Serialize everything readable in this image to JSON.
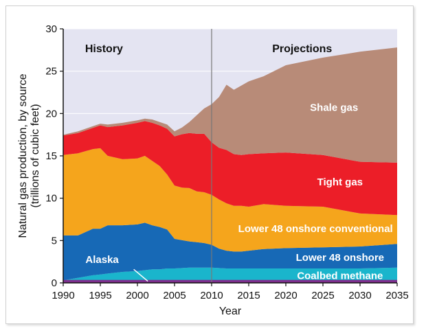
{
  "chart_data": {
    "type": "area",
    "stacked": true,
    "xlabel": "Year",
    "ylabel_line1": "Natural gas production, by source",
    "ylabel_line2": "(trillions of cubic feet)",
    "xlim": [
      1990,
      2035
    ],
    "ylim": [
      0,
      30
    ],
    "x_ticks": [
      1990,
      1995,
      2000,
      2005,
      2010,
      2015,
      2020,
      2025,
      2030,
      2035
    ],
    "y_ticks": [
      0,
      5,
      10,
      15,
      20,
      25,
      30
    ],
    "grid": true,
    "divider_year": 2010,
    "section_labels": [
      "History",
      "Projections"
    ],
    "x": [
      1990,
      1992,
      1994,
      1995,
      1996,
      1998,
      2000,
      2001,
      2002,
      2003,
      2004,
      2005,
      2006,
      2007,
      2008,
      2009,
      2010,
      2011,
      2012,
      2013,
      2014,
      2015,
      2017,
      2020,
      2025,
      2030,
      2035
    ],
    "series": [
      {
        "name": "Coalbed methane",
        "color": "#1ab5cc",
        "values": [
          0.3,
          0.6,
          0.9,
          1.0,
          1.1,
          1.3,
          1.4,
          1.5,
          1.6,
          1.6,
          1.7,
          1.7,
          1.75,
          1.8,
          1.8,
          1.8,
          1.8,
          1.75,
          1.7,
          1.7,
          1.7,
          1.7,
          1.7,
          1.7,
          1.7,
          1.7,
          1.8
        ]
      },
      {
        "name": "Lower 48 onshore",
        "color": "#1769b6",
        "values": [
          5.3,
          5.0,
          5.5,
          5.4,
          5.7,
          5.5,
          5.5,
          5.6,
          5.2,
          5.0,
          4.6,
          3.5,
          3.3,
          3.1,
          3.0,
          2.9,
          2.7,
          2.3,
          2.1,
          2.0,
          2.0,
          2.1,
          2.3,
          2.4,
          2.5,
          2.6,
          2.8
        ]
      },
      {
        "name": "Lower 48 onshore conventional",
        "color": "#f5a51c",
        "values": [
          9.5,
          9.7,
          9.4,
          9.5,
          8.2,
          7.8,
          7.8,
          7.9,
          7.6,
          7.2,
          6.5,
          6.3,
          6.2,
          6.3,
          6.0,
          6.0,
          5.9,
          5.8,
          5.6,
          5.4,
          5.4,
          5.2,
          5.3,
          5.0,
          4.8,
          3.9,
          3.4
        ]
      },
      {
        "name": "Tight gas",
        "color": "#ec1e28",
        "values": [
          2.3,
          2.4,
          2.5,
          2.7,
          3.4,
          4.0,
          4.2,
          4.1,
          4.5,
          4.8,
          5.4,
          5.8,
          6.3,
          6.5,
          6.8,
          6.9,
          6.2,
          6.1,
          6.3,
          6.1,
          6.0,
          6.2,
          6.0,
          6.3,
          6.1,
          6.1,
          6.2
        ]
      },
      {
        "name": "Shale gas",
        "color": "#b88b78",
        "values": [
          0.1,
          0.2,
          0.2,
          0.2,
          0.3,
          0.3,
          0.3,
          0.3,
          0.4,
          0.4,
          0.5,
          0.6,
          0.8,
          1.3,
          2.2,
          3.0,
          4.5,
          6.0,
          7.7,
          7.6,
          8.2,
          8.6,
          9.1,
          10.3,
          11.5,
          13.0,
          13.6
        ]
      }
    ],
    "annotations": {
      "alaska": {
        "label": "Alaska",
        "color": "#7e2e8c",
        "value": 0.35
      }
    }
  }
}
